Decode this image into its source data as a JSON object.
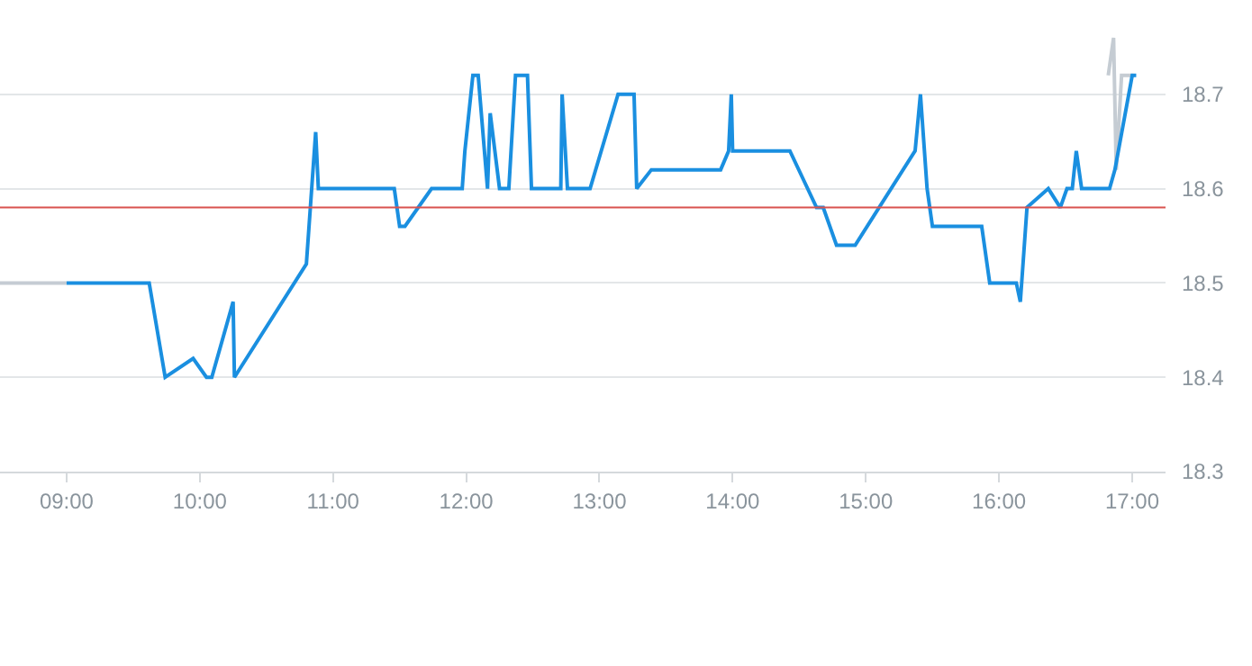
{
  "chart_data": {
    "type": "line",
    "xlim": [
      8.5,
      17.25
    ],
    "ylim": [
      18.3,
      18.8
    ],
    "xticks": [
      {
        "value": 9,
        "label": "09:00"
      },
      {
        "value": 10,
        "label": "10:00"
      },
      {
        "value": 11,
        "label": "11:00"
      },
      {
        "value": 12,
        "label": "12:00"
      },
      {
        "value": 13,
        "label": "13:00"
      },
      {
        "value": 14,
        "label": "14:00"
      },
      {
        "value": 15,
        "label": "15:00"
      },
      {
        "value": 16,
        "label": "16:00"
      },
      {
        "value": 17,
        "label": "17:00"
      }
    ],
    "yticks": [
      18.3,
      18.4,
      18.5,
      18.6,
      18.7
    ],
    "grid": "y",
    "marker": "none",
    "line_style": "solid",
    "ref_lines": [
      {
        "axis": "y",
        "value": 18.58,
        "color": "#d9534f"
      }
    ],
    "series": [
      {
        "color": "#c5ccd3",
        "x": [
          8.5,
          9.0,
          null,
          16.82,
          16.86,
          16.88,
          16.92,
          17.01
        ],
        "values": [
          18.5,
          18.5,
          null,
          18.72,
          18.76,
          18.62,
          18.72,
          18.72
        ]
      },
      {
        "color": "#1a8fe0",
        "x": [
          9.0,
          9.62,
          9.74,
          9.95,
          10.05,
          10.09,
          10.25,
          10.26,
          10.8,
          10.87,
          10.89,
          11.46,
          11.5,
          11.54,
          11.74,
          11.97,
          11.99,
          12.05,
          12.09,
          12.16,
          12.18,
          12.25,
          12.32,
          12.37,
          12.46,
          12.49,
          12.71,
          12.72,
          12.76,
          12.93,
          13.14,
          13.26,
          13.28,
          13.39,
          13.91,
          13.97,
          13.99,
          14.0,
          14.43,
          14.63,
          14.68,
          14.78,
          14.92,
          15.37,
          15.41,
          15.46,
          15.5,
          15.87,
          15.93,
          16.13,
          16.16,
          16.21,
          16.37,
          16.46,
          16.51,
          16.55,
          16.58,
          16.62,
          16.83,
          16.87,
          17.0,
          17.03
        ],
        "values": [
          18.5,
          18.5,
          18.4,
          18.42,
          18.4,
          18.4,
          18.48,
          18.4,
          18.52,
          18.66,
          18.6,
          18.6,
          18.56,
          18.56,
          18.6,
          18.6,
          18.64,
          18.72,
          18.72,
          18.6,
          18.68,
          18.6,
          18.6,
          18.72,
          18.72,
          18.6,
          18.6,
          18.7,
          18.6,
          18.6,
          18.7,
          18.7,
          18.6,
          18.62,
          18.62,
          18.64,
          18.7,
          18.64,
          18.64,
          18.58,
          18.58,
          18.54,
          18.54,
          18.64,
          18.7,
          18.6,
          18.56,
          18.56,
          18.5,
          18.5,
          18.48,
          18.58,
          18.6,
          18.58,
          18.6,
          18.6,
          18.64,
          18.6,
          18.6,
          18.62,
          18.72,
          18.72
        ]
      }
    ]
  }
}
